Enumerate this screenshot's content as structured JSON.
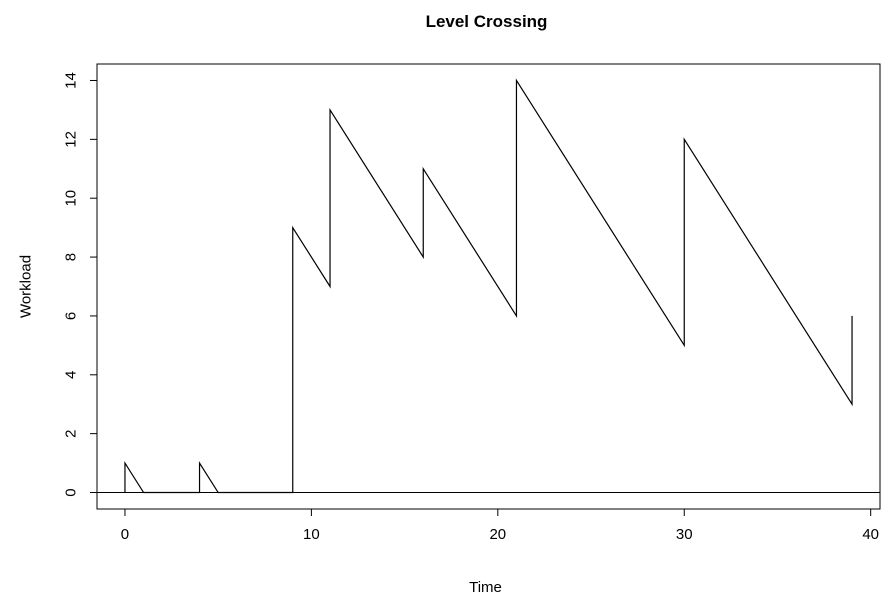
{
  "chart_data": {
    "type": "line",
    "title": "Level Crossing",
    "xlabel": "Time",
    "ylabel": "Workload",
    "xlim": [
      -1.5,
      40.5
    ],
    "ylim": [
      -0.56,
      14.56
    ],
    "xticks": [
      0,
      10,
      20,
      30,
      40
    ],
    "yticks": [
      0,
      2,
      4,
      6,
      8,
      10,
      12,
      14
    ],
    "xtick_labels": [
      "0",
      "10",
      "20",
      "30",
      "40"
    ],
    "ytick_labels": [
      "0",
      "2",
      "4",
      "6",
      "8",
      "10",
      "12",
      "14"
    ],
    "reference_line_y": 0,
    "line_color": "#000000",
    "grid": false,
    "series": [
      {
        "x": [
          0,
          0,
          1,
          4,
          4,
          5,
          9,
          9,
          11,
          11,
          16,
          16,
          21,
          21,
          30,
          30,
          39,
          39
        ],
        "y": [
          0,
          1,
          0,
          0,
          1,
          0,
          0,
          9,
          7,
          13,
          8,
          11,
          6,
          14,
          5,
          12,
          3,
          6
        ]
      }
    ]
  }
}
